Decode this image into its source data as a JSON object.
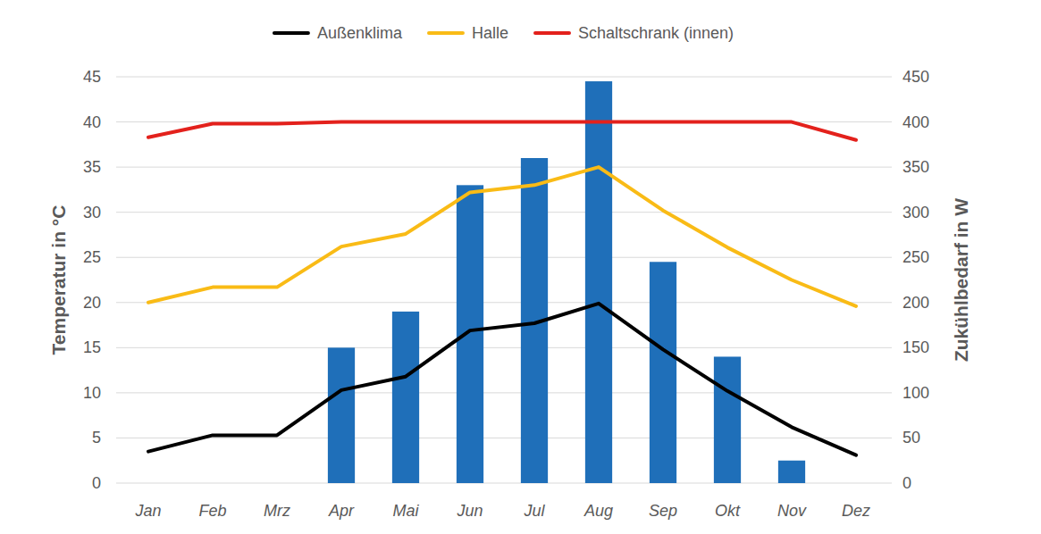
{
  "chart_data": {
    "type": "bar",
    "categories": [
      "Jan",
      "Feb",
      "Mrz",
      "Apr",
      "Mai",
      "Jun",
      "Jul",
      "Aug",
      "Sep",
      "Okt",
      "Nov",
      "Dez"
    ],
    "y_label": "Temperatur in °C",
    "y2_label": "Zukühlbedarf in W",
    "ylim": [
      0,
      45
    ],
    "yticks": [
      0,
      5,
      10,
      15,
      20,
      25,
      30,
      35,
      40,
      45
    ],
    "y2lim": [
      0,
      450
    ],
    "y2ticks": [
      0,
      50,
      100,
      150,
      200,
      250,
      300,
      350,
      400,
      450
    ],
    "grid": true,
    "legend": "top",
    "series": [
      {
        "type": "bar",
        "axis": "y2",
        "color": "#1f6fb9",
        "values": [
          0,
          0,
          0,
          150,
          190,
          330,
          360,
          445,
          245,
          140,
          25,
          0
        ]
      },
      {
        "name": "Außenklima",
        "type": "line",
        "color": "#000000",
        "values": [
          3.5,
          5.3,
          5.3,
          10.3,
          11.8,
          16.9,
          17.7,
          19.9,
          14.8,
          10.2,
          6.2,
          3.1
        ]
      },
      {
        "name": "Halle",
        "type": "line",
        "color": "#f9bb16",
        "values": [
          20.0,
          21.7,
          21.7,
          26.2,
          27.6,
          32.2,
          33.0,
          35.0,
          30.2,
          26.1,
          22.5,
          19.6
        ]
      },
      {
        "name": "Schaltschrank (innen)",
        "type": "line",
        "color": "#e3211c",
        "values": [
          38.3,
          39.8,
          39.8,
          40.0,
          40.0,
          40.0,
          40.0,
          40.0,
          40.0,
          40.0,
          40.0,
          38.0
        ]
      }
    ]
  }
}
